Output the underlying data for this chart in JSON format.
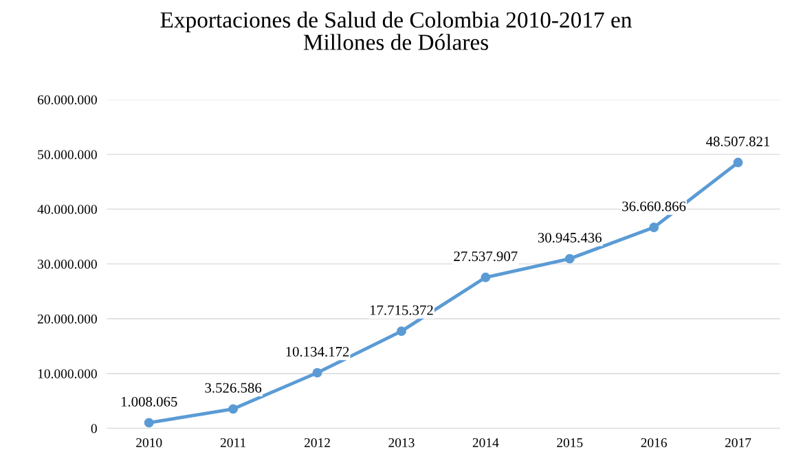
{
  "chart_data": {
    "type": "line",
    "title": "Exportaciones de Salud de Colombia 2010-2017 en\nMillones de Dólares",
    "categories": [
      "2010",
      "2011",
      "2012",
      "2013",
      "2014",
      "2015",
      "2016",
      "2017"
    ],
    "series": [
      {
        "color": "#5b9bd5",
        "values": [
          1008065,
          3526586,
          10134172,
          17715372,
          27537907,
          30945436,
          36660866,
          48507821
        ],
        "value_labels": [
          "1.008.065",
          "3.526.586",
          "10.134.172",
          "17.715.372",
          "27.537.907",
          "30.945.436",
          "36.660.866",
          "48.507.821"
        ]
      }
    ],
    "ylim": [
      0,
      60000000
    ],
    "yticks": [
      {
        "value": 0,
        "label": "0"
      },
      {
        "value": 10000000,
        "label": "10.000.000"
      },
      {
        "value": 20000000,
        "label": "20.000.000"
      },
      {
        "value": 30000000,
        "label": "30.000.000"
      },
      {
        "value": 40000000,
        "label": "40.000.000"
      },
      {
        "value": 50000000,
        "label": "50.000.000"
      },
      {
        "value": 60000000,
        "label": "60.000.000"
      }
    ],
    "grid": "y",
    "marker": "circle",
    "line_style": "solid"
  }
}
